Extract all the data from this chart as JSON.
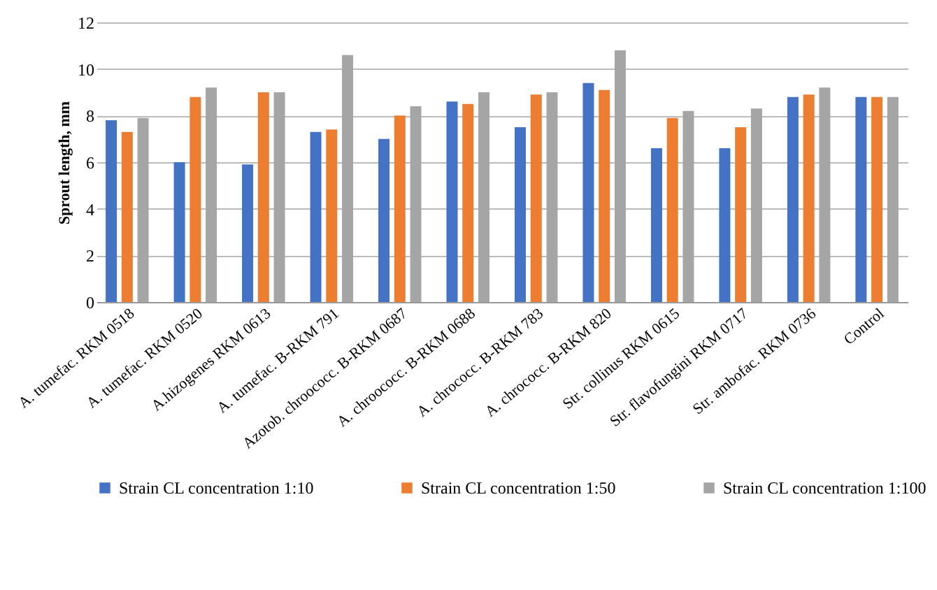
{
  "chart_data": {
    "type": "bar",
    "ylabel": "Sprout length, mm",
    "categories": [
      "A. tumefac. RKM 0518",
      "A. tumefac. RKM 0520",
      "A.hizogenes RKM 0613",
      "A. tumefac. B-RKM  791",
      "Azotob. chroococc. B-RKM  0687",
      "A. chroococc. B-RKM  0688",
      "A. chrococc. B-RKM  783",
      "A. chrococc. B-RKM  820",
      "Str. collinus  RKM 0615",
      "Str. flavofungini RKM 0717",
      "Str. ambofac.  RKM 0736",
      "Control"
    ],
    "series": [
      {
        "name": "Strain CL concentration 1:10",
        "color": "#4472c4",
        "values": [
          7.8,
          6.0,
          5.9,
          7.3,
          7.0,
          8.6,
          7.5,
          9.4,
          6.6,
          6.6,
          8.8,
          8.8
        ]
      },
      {
        "name": "Strain CL concentration 1:50",
        "color": "#ed7d31",
        "values": [
          7.3,
          8.8,
          9.0,
          7.4,
          8.0,
          8.5,
          8.9,
          9.1,
          7.9,
          7.5,
          8.9,
          8.8
        ]
      },
      {
        "name": "Strain CL concentration 1:100",
        "color": "#a5a5a5",
        "values": [
          7.9,
          9.2,
          9.0,
          10.6,
          8.4,
          9.0,
          9.0,
          10.8,
          8.2,
          8.3,
          9.2,
          8.8
        ]
      }
    ],
    "ylim": [
      0,
      12
    ],
    "yticks": [
      0,
      2,
      4,
      6,
      8,
      10,
      12
    ],
    "grid": "y",
    "legend": "bottom"
  }
}
